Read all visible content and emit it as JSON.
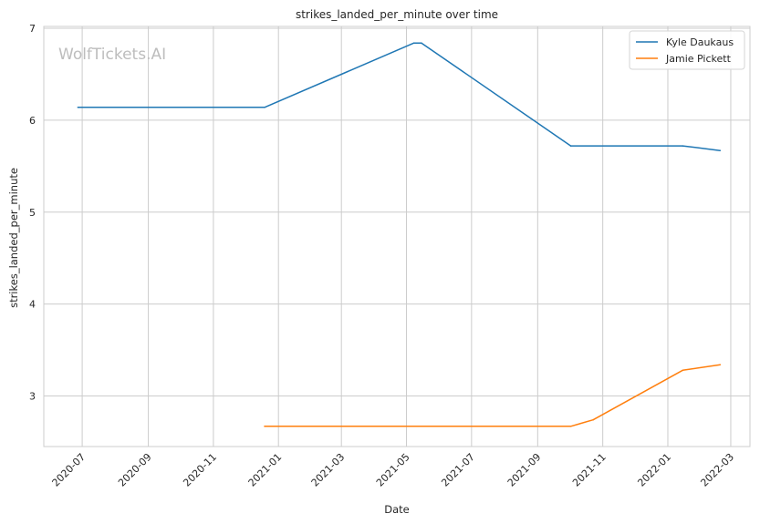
{
  "chart_data": {
    "type": "line",
    "title": "strikes_landed_per_minute over time",
    "xlabel": "Date",
    "ylabel": "strikes_landed_per_minute",
    "watermark": "WolfTickets.AI",
    "x_tick_labels": [
      "2020-07",
      "2020-09",
      "2020-11",
      "2021-01",
      "2021-03",
      "2021-05",
      "2021-07",
      "2021-09",
      "2021-11",
      "2022-01",
      "2022-03"
    ],
    "y_tick_labels": [
      "3",
      "4",
      "5",
      "6",
      "7"
    ],
    "xlim": [
      "2020-05-26",
      "2022-03-19"
    ],
    "ylim": [
      2.45,
      7.02
    ],
    "grid": true,
    "legend_position": "top-right",
    "series": [
      {
        "name": "Kyle Daukaus",
        "color": "#1f77b4",
        "points": [
          {
            "x": "2020-06-27",
            "y": 6.14
          },
          {
            "x": "2020-12-19",
            "y": 6.14
          },
          {
            "x": "2021-05-08",
            "y": 6.84
          },
          {
            "x": "2021-05-15",
            "y": 6.84
          },
          {
            "x": "2021-10-02",
            "y": 5.72
          },
          {
            "x": "2022-01-15",
            "y": 5.72
          },
          {
            "x": "2022-02-19",
            "y": 5.67
          }
        ]
      },
      {
        "name": "Jamie Pickett",
        "color": "#ff7f0e",
        "points": [
          {
            "x": "2020-12-19",
            "y": 2.67
          },
          {
            "x": "2021-10-02",
            "y": 2.67
          },
          {
            "x": "2021-10-23",
            "y": 2.74
          },
          {
            "x": "2022-01-15",
            "y": 3.28
          },
          {
            "x": "2022-02-19",
            "y": 3.34
          }
        ]
      }
    ]
  }
}
